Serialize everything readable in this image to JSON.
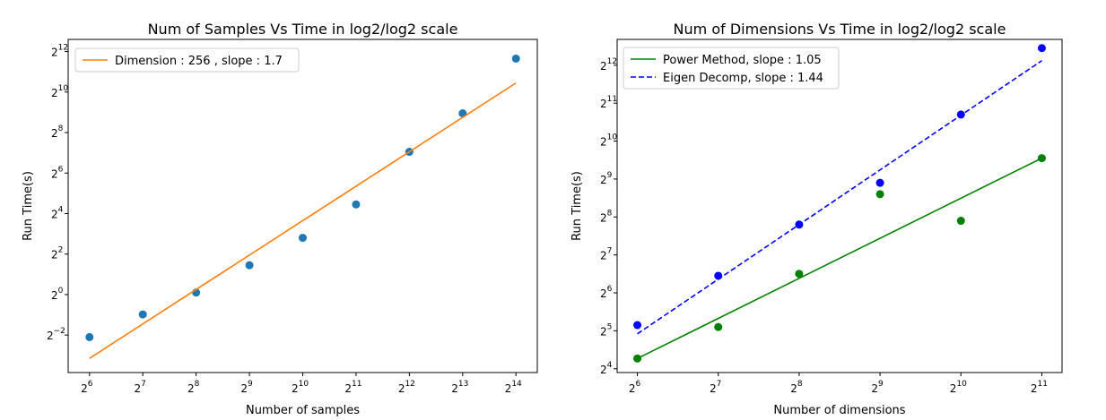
{
  "chart_data": [
    {
      "type": "scatter",
      "title": "Num of Samples Vs Time in log2/log2 scale",
      "xlabel": "Number of samples",
      "ylabel": "Run Time(s)",
      "x_scale": "log2",
      "y_scale": "log2",
      "xlim_log2": [
        5.6,
        14.4
      ],
      "ylim_log2": [
        -3.85,
        12.6
      ],
      "xticks_log2": [
        6,
        7,
        8,
        9,
        10,
        11,
        12,
        13,
        14
      ],
      "yticks_log2": [
        -2,
        0,
        2,
        4,
        6,
        8,
        10,
        12
      ],
      "grid": false,
      "legend_position": "upper-left",
      "series": [
        {
          "name": "",
          "kind": "points",
          "color": "#1f77b4",
          "x_log2": [
            6,
            7,
            8,
            9,
            10,
            11,
            12,
            13,
            14
          ],
          "y_log2": [
            -2.1,
            -0.98,
            0.1,
            1.45,
            2.8,
            4.45,
            7.05,
            8.95,
            11.65
          ]
        },
        {
          "name": "Dimension : 256 , slope : 1.7",
          "kind": "line",
          "color": "#ff7f0e",
          "x_log2": [
            6,
            14
          ],
          "y_log2": [
            -3.15,
            10.45
          ]
        }
      ]
    },
    {
      "type": "scatter",
      "title": "Num of Dimensions Vs Time in log2/log2 scale",
      "xlabel": "Number of dimensions",
      "ylabel": "Run Time(s)",
      "x_scale": "log2",
      "y_scale": "log2",
      "xlim_log2": [
        5.75,
        11.25
      ],
      "ylim_log2": [
        3.9,
        12.68
      ],
      "xticks_log2": [
        6,
        7,
        8,
        9,
        10,
        11
      ],
      "yticks_log2": [
        4,
        5,
        6,
        7,
        8,
        9,
        10,
        11,
        12
      ],
      "grid": false,
      "legend_position": "upper-left",
      "series": [
        {
          "name": "Power Method, slope : 1.05",
          "kind": "line",
          "style": "solid",
          "color": "#008000",
          "x_log2": [
            6,
            11
          ],
          "y_log2": [
            4.27,
            9.55
          ]
        },
        {
          "name": "Eigen Decomp, slope : 1.44",
          "kind": "line",
          "style": "dashed",
          "color": "#0000ff",
          "x_log2": [
            6,
            11
          ],
          "y_log2": [
            4.92,
            12.12
          ]
        },
        {
          "name": "",
          "kind": "points",
          "color": "#008000",
          "x_log2": [
            6,
            7,
            8,
            9,
            10,
            11
          ],
          "y_log2": [
            4.27,
            5.1,
            6.5,
            8.6,
            7.9,
            9.55
          ]
        },
        {
          "name": "",
          "kind": "points",
          "color": "#0000ff",
          "x_log2": [
            6,
            7,
            8,
            9,
            10,
            11
          ],
          "y_log2": [
            5.15,
            6.45,
            7.8,
            8.9,
            10.7,
            12.45
          ]
        }
      ]
    }
  ]
}
